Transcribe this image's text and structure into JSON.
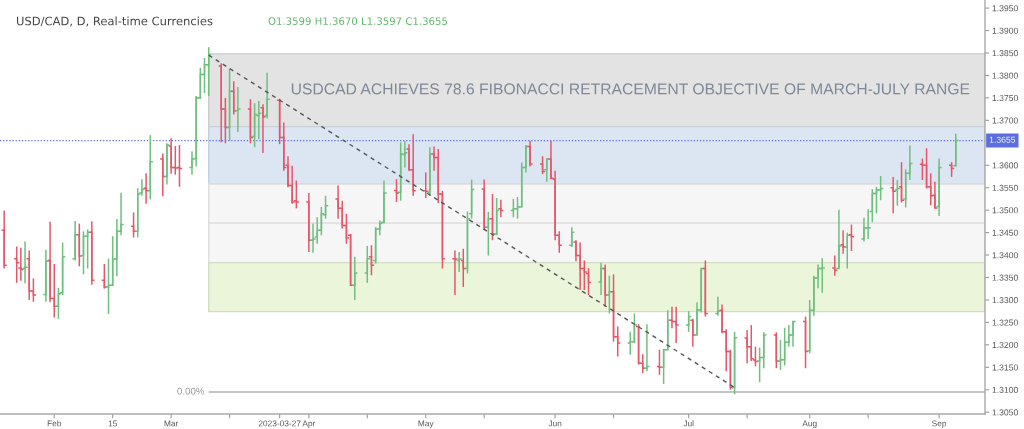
{
  "chart_data": {
    "type": "candlestick",
    "title": "USD/CAD, D, Real-time Currencies",
    "subtitle": "O1.3599 H1.3670 L1.3597 C1.3655",
    "annotations": [
      "USDCAD ACHIEVES 78.6 FIBONACCI RETRACEMENT OBJECTIVE OF MARCH-JULY RANGE",
      {
        "text": "0.00%",
        "x": "2023-03-10",
        "y": 1.3095
      }
    ],
    "x": [
      "2023-01-20",
      "2023-01-23",
      "2023-01-24",
      "2023-01-25",
      "2023-01-26",
      "2023-01-27",
      "2023-01-30",
      "2023-01-31",
      "2023-02-01",
      "2023-02-02",
      "2023-02-03",
      "2023-02-06",
      "2023-02-07",
      "2023-02-08",
      "2023-02-09",
      "2023-02-10",
      "2023-02-13",
      "2023-02-14",
      "2023-02-15",
      "2023-02-16",
      "2023-02-17",
      "2023-02-20",
      "2023-02-21",
      "2023-02-22",
      "2023-02-23",
      "2023-02-24",
      "2023-02-27",
      "2023-02-28",
      "2023-03-01",
      "2023-03-02",
      "2023-03-03",
      "2023-03-06",
      "2023-03-07",
      "2023-03-08",
      "2023-03-09",
      "2023-03-10",
      "2023-03-13",
      "2023-03-14",
      "2023-03-15",
      "2023-03-16",
      "2023-03-17",
      "2023-03-20",
      "2023-03-21",
      "2023-03-22",
      "2023-03-23",
      "2023-03-24",
      "2023-03-27",
      "2023-03-28",
      "2023-03-29",
      "2023-03-30",
      "2023-03-31",
      "2023-04-03",
      "2023-04-04",
      "2023-04-05",
      "2023-04-06",
      "2023-04-07",
      "2023-04-10",
      "2023-04-11",
      "2023-04-12",
      "2023-04-13",
      "2023-04-14",
      "2023-04-17",
      "2023-04-18",
      "2023-04-19",
      "2023-04-20",
      "2023-04-21",
      "2023-04-24",
      "2023-04-25",
      "2023-04-26",
      "2023-04-27",
      "2023-04-28",
      "2023-05-01",
      "2023-05-02",
      "2023-05-03",
      "2023-05-04",
      "2023-05-05",
      "2023-05-08",
      "2023-05-09",
      "2023-05-10",
      "2023-05-11",
      "2023-05-12",
      "2023-05-15",
      "2023-05-16",
      "2023-05-17",
      "2023-05-18",
      "2023-05-19",
      "2023-05-22",
      "2023-05-23",
      "2023-05-24",
      "2023-05-25",
      "2023-05-26",
      "2023-05-29",
      "2023-05-30",
      "2023-05-31",
      "2023-06-01",
      "2023-06-02",
      "2023-06-05",
      "2023-06-06",
      "2023-06-07",
      "2023-06-08",
      "2023-06-09",
      "2023-06-12",
      "2023-06-13",
      "2023-06-14",
      "2023-06-15",
      "2023-06-16",
      "2023-06-19",
      "2023-06-20",
      "2023-06-21",
      "2023-06-22",
      "2023-06-23",
      "2023-06-26",
      "2023-06-27",
      "2023-06-28",
      "2023-06-29",
      "2023-06-30",
      "2023-07-03",
      "2023-07-04",
      "2023-07-05",
      "2023-07-06",
      "2023-07-07",
      "2023-07-10",
      "2023-07-11",
      "2023-07-12",
      "2023-07-13",
      "2023-07-14",
      "2023-07-17",
      "2023-07-18",
      "2023-07-19",
      "2023-07-20",
      "2023-07-21",
      "2023-07-24",
      "2023-07-25",
      "2023-07-26",
      "2023-07-27",
      "2023-07-28",
      "2023-07-31",
      "2023-08-01",
      "2023-08-02",
      "2023-08-03",
      "2023-08-04",
      "2023-08-07",
      "2023-08-08",
      "2023-08-09",
      "2023-08-10",
      "2023-08-11",
      "2023-08-14",
      "2023-08-15",
      "2023-08-16",
      "2023-08-17",
      "2023-08-18",
      "2023-08-21",
      "2023-08-22",
      "2023-08-23",
      "2023-08-24",
      "2023-08-25",
      "2023-08-28",
      "2023-08-29",
      "2023-08-30",
      "2023-08-31",
      "2023-09-01",
      "2023-09-04",
      "2023-09-05"
    ],
    "ohlc": [
      [
        1.3455,
        1.3499,
        1.337,
        1.3377
      ],
      [
        1.3392,
        1.3419,
        1.3338,
        1.3383
      ],
      [
        1.3371,
        1.3416,
        1.3343,
        1.3368
      ],
      [
        1.337,
        1.343,
        1.3337,
        1.3373
      ],
      [
        1.3392,
        1.341,
        1.33,
        1.332
      ],
      [
        1.332,
        1.3348,
        1.3296,
        1.3311
      ],
      [
        1.3312,
        1.3412,
        1.3296,
        1.3386
      ],
      [
        1.3388,
        1.3474,
        1.3295,
        1.3303
      ],
      [
        1.3303,
        1.338,
        1.3261,
        1.3286
      ],
      [
        1.3286,
        1.3327,
        1.3258,
        1.3314
      ],
      [
        1.3316,
        1.3428,
        1.3311,
        1.3396
      ],
      [
        1.3392,
        1.3476,
        1.3388,
        1.3445
      ],
      [
        1.3445,
        1.347,
        1.3375,
        1.3398
      ],
      [
        1.3399,
        1.3453,
        1.3357,
        1.3442
      ],
      [
        1.3442,
        1.3457,
        1.337,
        1.3451
      ],
      [
        1.3451,
        1.3475,
        1.3334,
        1.3344
      ],
      [
        1.3344,
        1.338,
        1.3325,
        1.3329
      ],
      [
        1.3329,
        1.3392,
        1.3269,
        1.3333
      ],
      [
        1.3333,
        1.3442,
        1.3331,
        1.3391
      ],
      [
        1.3391,
        1.348,
        1.3353,
        1.3453
      ],
      [
        1.3453,
        1.3539,
        1.3444,
        1.3468
      ],
      [
        1.3464,
        1.3495,
        1.3439,
        1.3453
      ],
      [
        1.3453,
        1.3549,
        1.3439,
        1.3536
      ],
      [
        1.3538,
        1.3569,
        1.3532,
        1.3546
      ],
      [
        1.3549,
        1.3582,
        1.3514,
        1.3543
      ],
      [
        1.3543,
        1.3667,
        1.3524,
        1.3608
      ],
      [
        1.3614,
        1.3626,
        1.3531,
        1.3575
      ],
      [
        1.3575,
        1.3649,
        1.3557,
        1.3645
      ],
      [
        1.3643,
        1.366,
        1.3581,
        1.3595
      ],
      [
        1.3595,
        1.3643,
        1.3579,
        1.3594
      ],
      [
        1.3595,
        1.3645,
        1.3552,
        1.3593
      ],
      [
        1.3595,
        1.3631,
        1.3579,
        1.3614
      ],
      [
        1.3615,
        1.3754,
        1.3597,
        1.375
      ],
      [
        1.375,
        1.3817,
        1.3748,
        1.3802
      ],
      [
        1.3802,
        1.3839,
        1.3761,
        1.3824
      ],
      [
        1.3824,
        1.3863,
        1.3754,
        1.3846
      ],
      [
        1.3821,
        1.3827,
        1.3651,
        1.3725
      ],
      [
        1.3725,
        1.375,
        1.3649,
        1.3684
      ],
      [
        1.3684,
        1.3815,
        1.3654,
        1.3765
      ],
      [
        1.3765,
        1.3787,
        1.3713,
        1.3721
      ],
      [
        1.3722,
        1.3774,
        1.3674,
        1.3725
      ],
      [
        1.3725,
        1.3747,
        1.3649,
        1.3662
      ],
      [
        1.3664,
        1.3738,
        1.364,
        1.3713
      ],
      [
        1.3711,
        1.3743,
        1.3658,
        1.3716
      ],
      [
        1.3728,
        1.3736,
        1.3627,
        1.3708
      ],
      [
        1.371,
        1.3806,
        1.3704,
        1.3747
      ],
      [
        1.3745,
        1.3748,
        1.3647,
        1.3662
      ],
      [
        1.3662,
        1.3695,
        1.3588,
        1.3595
      ],
      [
        1.36,
        1.362,
        1.3551,
        1.3555
      ],
      [
        1.3555,
        1.3599,
        1.3514,
        1.3518
      ],
      [
        1.3521,
        1.3566,
        1.3504,
        1.3518
      ],
      [
        1.3518,
        1.3538,
        1.3407,
        1.3433
      ],
      [
        1.3433,
        1.347,
        1.3405,
        1.3436
      ],
      [
        1.344,
        1.3484,
        1.3425,
        1.3455
      ],
      [
        1.3455,
        1.3507,
        1.3444,
        1.3492
      ],
      [
        1.349,
        1.3532,
        1.3481,
        1.351
      ],
      [
        1.3525,
        1.3555,
        1.3481,
        1.3504
      ],
      [
        1.3504,
        1.3521,
        1.3459,
        1.3466
      ],
      [
        1.3466,
        1.3492,
        1.3425,
        1.3438
      ],
      [
        1.3444,
        1.3447,
        1.3331,
        1.3333
      ],
      [
        1.3333,
        1.3396,
        1.33,
        1.336
      ],
      [
        1.336,
        1.342,
        1.3338,
        1.3392
      ],
      [
        1.3396,
        1.3422,
        1.3355,
        1.3377
      ],
      [
        1.3388,
        1.3462,
        1.3381,
        1.3458
      ],
      [
        1.3458,
        1.3477,
        1.3444,
        1.347
      ],
      [
        1.3473,
        1.3566,
        1.347,
        1.3538
      ],
      [
        1.3544,
        1.3569,
        1.3518,
        1.3538
      ],
      [
        1.354,
        1.3651,
        1.3521,
        1.3625
      ],
      [
        1.3624,
        1.3654,
        1.3595,
        1.3628
      ],
      [
        1.3636,
        1.3647,
        1.3588,
        1.359
      ],
      [
        1.359,
        1.3669,
        1.3532,
        1.3543
      ],
      [
        1.3543,
        1.3584,
        1.3527,
        1.3542
      ],
      [
        1.354,
        1.364,
        1.3532,
        1.3625
      ],
      [
        1.3625,
        1.3642,
        1.3588,
        1.3617
      ],
      [
        1.3617,
        1.3636,
        1.3516,
        1.3536
      ],
      [
        1.3536,
        1.3543,
        1.337,
        1.3392
      ],
      [
        1.3392,
        1.341,
        1.3311,
        1.3391
      ],
      [
        1.3388,
        1.3407,
        1.3362,
        1.3391
      ],
      [
        1.3388,
        1.3414,
        1.3329,
        1.337
      ],
      [
        1.337,
        1.3497,
        1.3359,
        1.3481
      ],
      [
        1.3492,
        1.3568,
        1.3481,
        1.3546
      ],
      [
        1.3547,
        1.3568,
        1.3455,
        1.3462
      ],
      [
        1.3462,
        1.3496,
        1.3399,
        1.3481
      ],
      [
        1.3481,
        1.3536,
        1.3433,
        1.3447
      ],
      [
        1.3447,
        1.3527,
        1.3444,
        1.3499
      ],
      [
        1.3503,
        1.3523,
        1.3484,
        1.3499
      ],
      [
        1.3499,
        1.3525,
        1.3484,
        1.3503
      ],
      [
        1.3503,
        1.3529,
        1.3481,
        1.3507
      ],
      [
        1.3507,
        1.3606,
        1.3507,
        1.3595
      ],
      [
        1.3595,
        1.3645,
        1.3584,
        1.3642
      ],
      [
        1.3642,
        1.3654,
        1.3597,
        1.3603
      ],
      [
        1.3603,
        1.362,
        1.358,
        1.3586
      ],
      [
        1.359,
        1.3615,
        1.3563,
        1.3614
      ],
      [
        1.3614,
        1.3654,
        1.3569,
        1.3571
      ],
      [
        1.3569,
        1.3588,
        1.3433,
        1.3444
      ],
      [
        1.3444,
        1.3453,
        1.3405,
        1.3422
      ],
      [
        1.3422,
        1.3462,
        1.3418,
        1.3451
      ],
      [
        1.3429,
        1.3433,
        1.3386,
        1.3399
      ],
      [
        1.3399,
        1.3428,
        1.3322,
        1.337
      ],
      [
        1.337,
        1.3388,
        1.3322,
        1.3362
      ],
      [
        1.3359,
        1.3371,
        1.3311,
        1.3339
      ],
      [
        1.334,
        1.3383,
        1.3311,
        1.337
      ],
      [
        1.337,
        1.3379,
        1.3285,
        1.3311
      ],
      [
        1.3311,
        1.3354,
        1.327,
        1.3318
      ],
      [
        1.3318,
        1.3357,
        1.3207,
        1.3218
      ],
      [
        1.3218,
        1.3241,
        1.3174,
        1.3204
      ],
      [
        1.3204,
        1.3229,
        1.3178,
        1.3207
      ],
      [
        1.3207,
        1.327,
        1.3204,
        1.3244
      ],
      [
        1.3241,
        1.3246,
        1.3156,
        1.3159
      ],
      [
        1.3159,
        1.3179,
        1.3137,
        1.3148
      ],
      [
        1.3148,
        1.3246,
        1.3141,
        1.3152
      ],
      [
        1.3152,
        1.3189,
        1.3133,
        1.315
      ],
      [
        1.315,
        1.3191,
        1.3113,
        1.3189
      ],
      [
        1.3189,
        1.3277,
        1.3189,
        1.3255
      ],
      [
        1.3255,
        1.3285,
        1.3237,
        1.3252
      ],
      [
        1.3252,
        1.3285,
        1.3204,
        1.3244
      ],
      [
        1.3244,
        1.3275,
        1.3229,
        1.3263
      ],
      [
        1.3255,
        1.3258,
        1.3196,
        1.3222
      ],
      [
        1.3222,
        1.3295,
        1.3222,
        1.3278
      ],
      [
        1.3277,
        1.3371,
        1.3272,
        1.337
      ],
      [
        1.337,
        1.3388,
        1.3263,
        1.327
      ],
      [
        1.327,
        1.3307,
        1.3265,
        1.3275
      ],
      [
        1.3277,
        1.329,
        1.3226,
        1.3229
      ],
      [
        1.3229,
        1.3235,
        1.3141,
        1.3185
      ],
      [
        1.3185,
        1.3189,
        1.31,
        1.3105
      ],
      [
        1.3105,
        1.3229,
        1.309,
        1.3216
      ],
      [
        1.3215,
        1.3233,
        1.3159,
        1.3196
      ],
      [
        1.3196,
        1.3244,
        1.3164,
        1.3169
      ],
      [
        1.3166,
        1.3196,
        1.3152,
        1.3163
      ],
      [
        1.3164,
        1.3194,
        1.3117,
        1.3172
      ],
      [
        1.3172,
        1.3228,
        1.3148,
        1.3222
      ],
      [
        1.3222,
        1.3228,
        1.3148,
        1.3164
      ],
      [
        1.3164,
        1.3211,
        1.3144,
        1.3167
      ],
      [
        1.3167,
        1.3238,
        1.3154,
        1.3206
      ],
      [
        1.3206,
        1.3244,
        1.3196,
        1.3222
      ],
      [
        1.3222,
        1.3253,
        1.3196,
        1.3252
      ],
      [
        1.3252,
        1.3263,
        1.3148,
        1.3185
      ],
      [
        1.3187,
        1.33,
        1.3181,
        1.3277
      ],
      [
        1.3277,
        1.3354,
        1.3265,
        1.3349
      ],
      [
        1.3349,
        1.3379,
        1.3326,
        1.337
      ],
      [
        1.337,
        1.3393,
        1.3316,
        1.3371
      ],
      [
        1.3371,
        1.3399,
        1.3354,
        1.3366
      ],
      [
        1.337,
        1.3501,
        1.337,
        1.342
      ],
      [
        1.3423,
        1.3455,
        1.3403,
        1.3418
      ],
      [
        1.3418,
        1.345,
        1.337,
        1.3444
      ],
      [
        1.3445,
        1.3468,
        1.3409,
        1.3441
      ],
      [
        1.3436,
        1.3483,
        1.343,
        1.346
      ],
      [
        1.346,
        1.3502,
        1.3436,
        1.3461
      ],
      [
        1.3497,
        1.3547,
        1.3473,
        1.3537
      ],
      [
        1.3537,
        1.3552,
        1.3493,
        1.3545
      ],
      [
        1.3545,
        1.3576,
        1.3522,
        1.3548
      ],
      [
        1.355,
        1.3574,
        1.3493,
        1.3542
      ],
      [
        1.3545,
        1.3567,
        1.351,
        1.3548
      ],
      [
        1.3552,
        1.3607,
        1.3517,
        1.3522
      ],
      [
        1.3525,
        1.3591,
        1.3506,
        1.3582
      ],
      [
        1.3582,
        1.3644,
        1.3567,
        1.3604
      ],
      [
        1.3602,
        1.3615,
        1.3567,
        1.36
      ],
      [
        1.36,
        1.3638,
        1.3548,
        1.3552
      ],
      [
        1.3552,
        1.3582,
        1.3511,
        1.3532
      ],
      [
        1.3533,
        1.3563,
        1.3504,
        1.3505
      ],
      [
        1.3508,
        1.3615,
        1.3487,
        1.3595
      ],
      [
        1.36,
        1.3607,
        1.3574,
        1.3593
      ],
      [
        1.3599,
        1.367,
        1.3597,
        1.3655
      ]
    ],
    "colors": [
      "#e4576b",
      "#e4576b",
      "#e4576b",
      "#6fbf7f",
      "#e4576b",
      "#e4576b",
      "#6fbf7f",
      "#e4576b",
      "#e4576b",
      "#6fbf7f",
      "#6fbf7f",
      "#6fbf7f",
      "#e4576b",
      "#6fbf7f",
      "#6fbf7f",
      "#e4576b",
      "#e4576b",
      "#6fbf7f",
      "#6fbf7f",
      "#6fbf7f",
      "#6fbf7f",
      "#e4576b",
      "#6fbf7f",
      "#6fbf7f",
      "#e4576b",
      "#6fbf7f",
      "#e4576b",
      "#6fbf7f",
      "#e4576b",
      "#e4576b",
      "#e4576b",
      "#6fbf7f",
      "#6fbf7f",
      "#6fbf7f",
      "#6fbf7f",
      "#6fbf7f",
      "#e4576b",
      "#e4576b",
      "#6fbf7f",
      "#e4576b",
      "#6fbf7f",
      "#e4576b",
      "#6fbf7f",
      "#6fbf7f",
      "#e4576b",
      "#6fbf7f",
      "#e4576b",
      "#e4576b",
      "#e4576b",
      "#e4576b",
      "#e4576b",
      "#e4576b",
      "#6fbf7f",
      "#6fbf7f",
      "#6fbf7f",
      "#6fbf7f",
      "#e4576b",
      "#e4576b",
      "#e4576b",
      "#e4576b",
      "#6fbf7f",
      "#6fbf7f",
      "#e4576b",
      "#6fbf7f",
      "#6fbf7f",
      "#6fbf7f",
      "#e4576b",
      "#6fbf7f",
      "#6fbf7f",
      "#e4576b",
      "#e4576b",
      "#e4576b",
      "#6fbf7f",
      "#e4576b",
      "#e4576b",
      "#e4576b",
      "#e4576b",
      "#6fbf7f",
      "#e4576b",
      "#6fbf7f",
      "#6fbf7f",
      "#e4576b",
      "#6fbf7f",
      "#e4576b",
      "#6fbf7f",
      "#e4576b",
      "#6fbf7f",
      "#6fbf7f",
      "#6fbf7f",
      "#6fbf7f",
      "#e4576b",
      "#e4576b",
      "#6fbf7f",
      "#e4576b",
      "#e4576b",
      "#e4576b",
      "#6fbf7f",
      "#e4576b",
      "#e4576b",
      "#e4576b",
      "#e4576b",
      "#6fbf7f",
      "#e4576b",
      "#6fbf7f",
      "#e4576b",
      "#e4576b",
      "#6fbf7f",
      "#6fbf7f",
      "#e4576b",
      "#e4576b",
      "#6fbf7f",
      "#e4576b",
      "#6fbf7f",
      "#6fbf7f",
      "#e4576b",
      "#e4576b",
      "#6fbf7f",
      "#e4576b",
      "#6fbf7f",
      "#6fbf7f",
      "#e4576b",
      "#6fbf7f",
      "#e4576b",
      "#e4576b",
      "#e4576b",
      "#6fbf7f",
      "#e4576b",
      "#e4576b",
      "#e4576b",
      "#6fbf7f",
      "#6fbf7f",
      "#e4576b",
      "#6fbf7f",
      "#6fbf7f",
      "#6fbf7f",
      "#6fbf7f",
      "#e4576b",
      "#6fbf7f",
      "#6fbf7f",
      "#6fbf7f",
      "#6fbf7f",
      "#e4576b",
      "#6fbf7f",
      "#e4576b",
      "#6fbf7f",
      "#e4576b",
      "#6fbf7f",
      "#6fbf7f",
      "#6fbf7f",
      "#6fbf7f",
      "#6fbf7f",
      "#e4576b",
      "#6fbf7f",
      "#e4576b",
      "#6fbf7f",
      "#6fbf7f",
      "#e4576b",
      "#e4576b",
      "#e4576b",
      "#e4576b",
      "#6fbf7f",
      "#e4576b",
      "#6fbf7f"
    ],
    "series": [
      {
        "type": "line",
        "x": [
          "2023-03-10",
          "2023-07-14"
        ],
        "values": [
          1.3845,
          1.3105
        ],
        "color": "#555555",
        "line_style": "dashed"
      }
    ],
    "xlim": [
      "2023-01-19",
      "2023-09-12"
    ],
    "xticks": [
      {
        "value": "2023-02-01",
        "label": "Feb"
      },
      {
        "value": "2023-02-15",
        "label": "15"
      },
      {
        "value": "2023-03-01",
        "label": "Mar"
      },
      {
        "value": "2023-03-15",
        "label": null
      },
      {
        "value": "2023-03-27",
        "label": "2023-03-27"
      },
      {
        "value": "2023-04-03",
        "label": "Apr"
      },
      {
        "value": "2023-04-17",
        "label": null
      },
      {
        "value": "2023-05-01",
        "label": "May"
      },
      {
        "value": "2023-05-15",
        "label": null
      },
      {
        "value": "2023-06-01",
        "label": "Jun"
      },
      {
        "value": "2023-06-15",
        "label": null
      },
      {
        "value": "2023-07-03",
        "label": "Jul"
      },
      {
        "value": "2023-07-17",
        "label": null
      },
      {
        "value": "2023-08-01",
        "label": "Aug"
      },
      {
        "value": "2023-08-15",
        "label": null
      },
      {
        "value": "2023-09-01",
        "label": "Sep"
      }
    ],
    "ylim": [
      1.3046,
      1.3968
    ],
    "yticks": [
      {
        "value": 1.305,
        "label": "1.3050"
      },
      {
        "value": 1.31,
        "label": "1.3100"
      },
      {
        "value": 1.315,
        "label": "1.3150"
      },
      {
        "value": 1.32,
        "label": "1.3200"
      },
      {
        "value": 1.325,
        "label": "1.3250"
      },
      {
        "value": 1.33,
        "label": "1.3300"
      },
      {
        "value": 1.335,
        "label": "1.3350"
      },
      {
        "value": 1.34,
        "label": "1.3400"
      },
      {
        "value": 1.345,
        "label": "1.3450"
      },
      {
        "value": 1.35,
        "label": "1.3500"
      },
      {
        "value": 1.355,
        "label": "1.3550"
      },
      {
        "value": 1.36,
        "label": "1.3600"
      },
      {
        "value": 1.37,
        "label": "1.3700"
      },
      {
        "value": 1.375,
        "label": "1.3750"
      },
      {
        "value": 1.38,
        "label": "1.3800"
      },
      {
        "value": 1.385,
        "label": "1.3850"
      },
      {
        "value": 1.39,
        "label": "1.3900"
      },
      {
        "value": 1.395,
        "label": "1.3950"
      }
    ],
    "bands": [
      {
        "axis": "y",
        "from": 1.3686,
        "to": 1.3848,
        "color": "#e3e3e3"
      },
      {
        "axis": "y",
        "from": 1.3558,
        "to": 1.3686,
        "color": "#dce6f2"
      },
      {
        "axis": "y",
        "from": 1.3471,
        "to": 1.3558,
        "color": "#f6f6f6"
      },
      {
        "axis": "y",
        "from": 1.3383,
        "to": 1.3471,
        "color": "#f6f6f6"
      },
      {
        "axis": "y",
        "from": 1.3274,
        "to": 1.3383,
        "color": "#ebf5da"
      }
    ],
    "ref_lines": [
      {
        "axis": "y",
        "value": 1.3095,
        "color": "#c4c4c4",
        "line_style": "solid"
      },
      {
        "axis": "y",
        "value": 1.3655,
        "label": "1.3655",
        "color": "#5d6fe0",
        "line_style": "dotted"
      }
    ]
  }
}
